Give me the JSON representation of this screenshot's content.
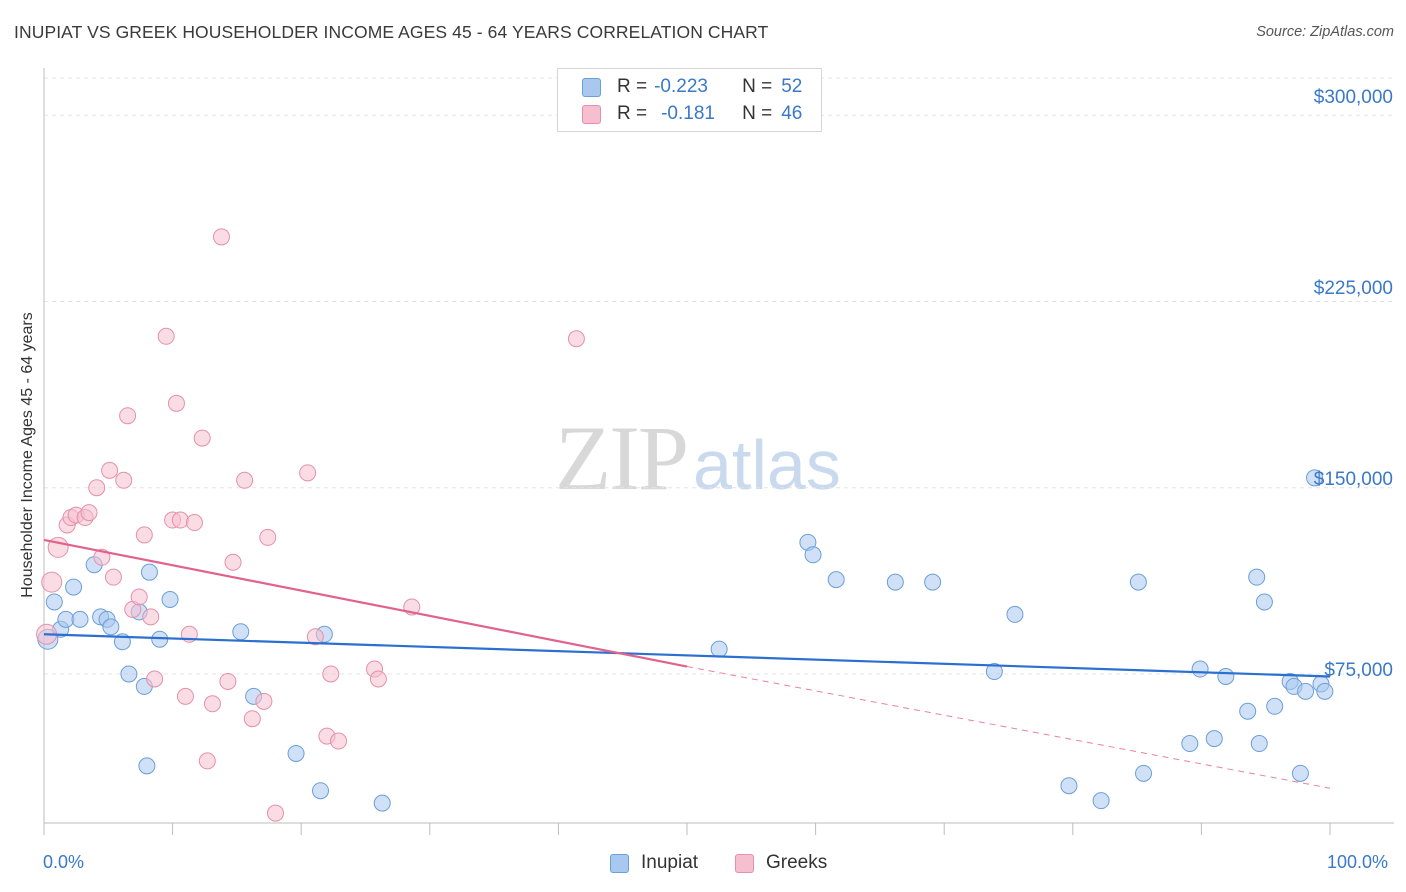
{
  "header": {
    "title": "INUPIAT VS GREEK HOUSEHOLDER INCOME AGES 45 - 64 YEARS CORRELATION CHART",
    "source": "Source: ZipAtlas.com"
  },
  "watermark": {
    "zip": "ZIP",
    "atlas": "atlas"
  },
  "stats_legend": {
    "rows": [
      {
        "r_label": "R =",
        "r_value": "-0.223",
        "n_label": "N =",
        "n_value": "52"
      },
      {
        "r_label": "R =",
        "r_value": "-0.181",
        "n_label": "N =",
        "n_value": "46"
      }
    ]
  },
  "colors": {
    "inupiat_fill": "#a9c8f0",
    "inupiat_stroke": "#6a9fd8",
    "inupiat_line": "#2b6fcf",
    "greeks_fill": "#f6bfd0",
    "greeks_stroke": "#e590ab",
    "greeks_line": "#e2628e",
    "tick_label": "#3a78c9",
    "grid": "#e4e4e4"
  },
  "chart_data": {
    "type": "scatter",
    "title": "INUPIAT VS GREEK HOUSEHOLDER INCOME AGES 45 - 64 YEARS CORRELATION CHART",
    "xlabel": "",
    "ylabel": "Householder Income Ages 45 - 64 years",
    "x_unit": "%",
    "xlim": [
      0,
      100
    ],
    "ylim": [
      15000,
      315000
    ],
    "x_tick_labels": [
      "0.0%",
      "100.0%"
    ],
    "y_ticks": [
      {
        "value": 75000,
        "label": "$75,000"
      },
      {
        "value": 150000,
        "label": "$150,000"
      },
      {
        "value": 225000,
        "label": "$225,000"
      },
      {
        "value": 300000,
        "label": "$300,000"
      }
    ],
    "grid": true,
    "legend_position": "bottom",
    "series": [
      {
        "name": "Inupiat",
        "color": "#a9c8f0",
        "r": -0.223,
        "n": 52,
        "trend": {
          "x": [
            0,
            100
          ],
          "y": [
            91000,
            74000
          ]
        },
        "points": [
          [
            0.3,
            89000
          ],
          [
            0.8,
            104000
          ],
          [
            1.3,
            93000
          ],
          [
            1.7,
            97000
          ],
          [
            2.3,
            110000
          ],
          [
            2.8,
            97000
          ],
          [
            3.9,
            119000
          ],
          [
            4.4,
            98000
          ],
          [
            4.9,
            97000
          ],
          [
            5.2,
            94000
          ],
          [
            6.1,
            88000
          ],
          [
            6.6,
            75000
          ],
          [
            7.4,
            100000
          ],
          [
            7.8,
            70000
          ],
          [
            8.0,
            38000
          ],
          [
            8.2,
            116000
          ],
          [
            9.0,
            89000
          ],
          [
            9.8,
            105000
          ],
          [
            15.3,
            92000
          ],
          [
            16.3,
            66000
          ],
          [
            19.6,
            43000
          ],
          [
            21.5,
            28000
          ],
          [
            21.8,
            91000
          ],
          [
            26.3,
            23000
          ],
          [
            52.5,
            85000
          ],
          [
            59.4,
            128000
          ],
          [
            59.8,
            123000
          ],
          [
            61.6,
            113000
          ],
          [
            66.2,
            112000
          ],
          [
            69.1,
            112000
          ],
          [
            73.9,
            76000
          ],
          [
            75.5,
            99000
          ],
          [
            79.7,
            30000
          ],
          [
            82.2,
            24000
          ],
          [
            85.1,
            112000
          ],
          [
            85.5,
            35000
          ],
          [
            89.1,
            47000
          ],
          [
            89.9,
            77000
          ],
          [
            91.0,
            49000
          ],
          [
            91.9,
            74000
          ],
          [
            93.6,
            60000
          ],
          [
            94.3,
            114000
          ],
          [
            94.5,
            47000
          ],
          [
            94.9,
            104000
          ],
          [
            95.7,
            62000
          ],
          [
            96.9,
            72000
          ],
          [
            97.2,
            70000
          ],
          [
            97.7,
            35000
          ],
          [
            98.1,
            68000
          ],
          [
            98.8,
            154000
          ],
          [
            99.3,
            71000
          ],
          [
            99.6,
            68000
          ]
        ]
      },
      {
        "name": "Greeks",
        "color": "#f6bfd0",
        "r": -0.181,
        "n": 46,
        "trend": {
          "x": [
            0,
            50
          ],
          "y": [
            129000,
            78000
          ]
        },
        "trend_extension": {
          "x": [
            50,
            100
          ],
          "y": [
            78000,
            29000
          ]
        },
        "points": [
          [
            0.2,
            91000
          ],
          [
            0.6,
            112000
          ],
          [
            1.1,
            126000
          ],
          [
            1.8,
            135000
          ],
          [
            2.1,
            138000
          ],
          [
            2.5,
            139000
          ],
          [
            3.2,
            138000
          ],
          [
            3.5,
            140000
          ],
          [
            4.1,
            150000
          ],
          [
            4.5,
            122000
          ],
          [
            5.1,
            157000
          ],
          [
            5.4,
            114000
          ],
          [
            6.2,
            153000
          ],
          [
            6.5,
            179000
          ],
          [
            6.9,
            101000
          ],
          [
            7.4,
            106000
          ],
          [
            7.8,
            131000
          ],
          [
            8.3,
            98000
          ],
          [
            8.6,
            73000
          ],
          [
            9.5,
            211000
          ],
          [
            10.0,
            137000
          ],
          [
            10.3,
            184000
          ],
          [
            10.6,
            137000
          ],
          [
            11.0,
            66000
          ],
          [
            11.3,
            91000
          ],
          [
            11.7,
            136000
          ],
          [
            12.3,
            170000
          ],
          [
            12.7,
            40000
          ],
          [
            13.1,
            63000
          ],
          [
            13.8,
            251000
          ],
          [
            14.3,
            72000
          ],
          [
            14.7,
            120000
          ],
          [
            15.6,
            153000
          ],
          [
            16.2,
            57000
          ],
          [
            17.1,
            64000
          ],
          [
            17.4,
            130000
          ],
          [
            18.0,
            19000
          ],
          [
            20.5,
            156000
          ],
          [
            21.1,
            90000
          ],
          [
            22.0,
            50000
          ],
          [
            22.3,
            75000
          ],
          [
            22.9,
            48000
          ],
          [
            25.7,
            77000
          ],
          [
            26.0,
            73000
          ],
          [
            28.6,
            102000
          ],
          [
            41.4,
            210000
          ]
        ]
      }
    ]
  }
}
